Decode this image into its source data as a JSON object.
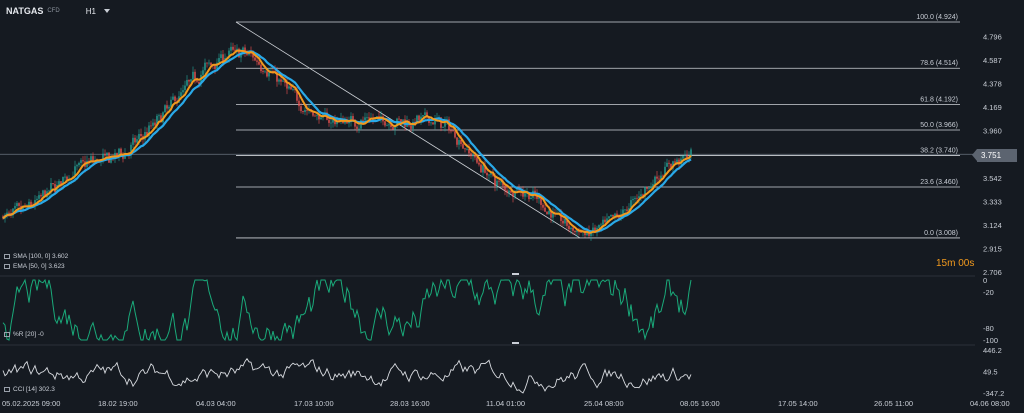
{
  "header": {
    "symbol": "NATGAS",
    "symbol_type": "CFD",
    "timeframe": "H1"
  },
  "price_axis": {
    "labels": [
      "4.796",
      "4.587",
      "4.378",
      "4.169",
      "3.960",
      "3.542",
      "3.333",
      "3.124",
      "2.915",
      "2.706"
    ],
    "current_price": "3.751"
  },
  "fib_levels": [
    {
      "label": "100.0 (4.924)",
      "value": 4.924
    },
    {
      "label": "78.6 (4.514)",
      "value": 4.514
    },
    {
      "label": "61.8 (4.192)",
      "value": 4.192
    },
    {
      "label": "50.0 (3.966)",
      "value": 3.966
    },
    {
      "label": "38.2 (3.740)",
      "value": 3.74
    },
    {
      "label": "23.6 (3.460)",
      "value": 3.46
    },
    {
      "label": "0.0 (3.008)",
      "value": 3.008
    }
  ],
  "indicators": {
    "sma_label": "SMA [100, 0]  3.602",
    "ema_label": "EMA [50, 0]  3.623",
    "wr_label": "%R [20]  -0",
    "wr_axis": [
      "0",
      "-20",
      "-80",
      "-100"
    ],
    "cci_label": "CCI [14]  302.3",
    "cci_axis": [
      "446.2",
      "49.5",
      "-347.2"
    ]
  },
  "countdown": "15m 00s",
  "time_axis": [
    "05.02.2025   09:00",
    "18.02   19:00",
    "04.03   04:00",
    "17.03   10:00",
    "28.03   16:00",
    "11.04   01:00",
    "25.04   08:00",
    "08.05   16:00",
    "17.05   14:00",
    "26.05   11:00",
    "04.06   08:00"
  ],
  "colors": {
    "background": "#151a21",
    "bull": "#26a69a",
    "bear": "#ef5350",
    "sma": "#29a9e8",
    "ema": "#f29a1e",
    "wr": "#1aaa7a",
    "cci": "#d8dbe0",
    "grid_line": "#cfd3d8"
  },
  "chart_data": {
    "type": "candlestick",
    "anchors": [
      {
        "x": "05.02.2025 09:00",
        "y": 3.2
      },
      {
        "x": "18.02 19:00",
        "y": 3.7
      },
      {
        "x": "04.03 04:00",
        "y": 4.65
      },
      {
        "x": "17.03 10:00",
        "y": 4.05
      },
      {
        "x": "28.03 16:00",
        "y": 4.05
      },
      {
        "x": "11.04 01:00",
        "y": 3.45
      },
      {
        "x": "25.04 08:00",
        "y": 3.05
      },
      {
        "x": "08.05 16:00",
        "y": 3.74
      }
    ],
    "price_range": [
      2.706,
      4.924
    ],
    "wr_range": [
      -100,
      0
    ],
    "cci_range": [
      -347.2,
      446.2
    ]
  }
}
